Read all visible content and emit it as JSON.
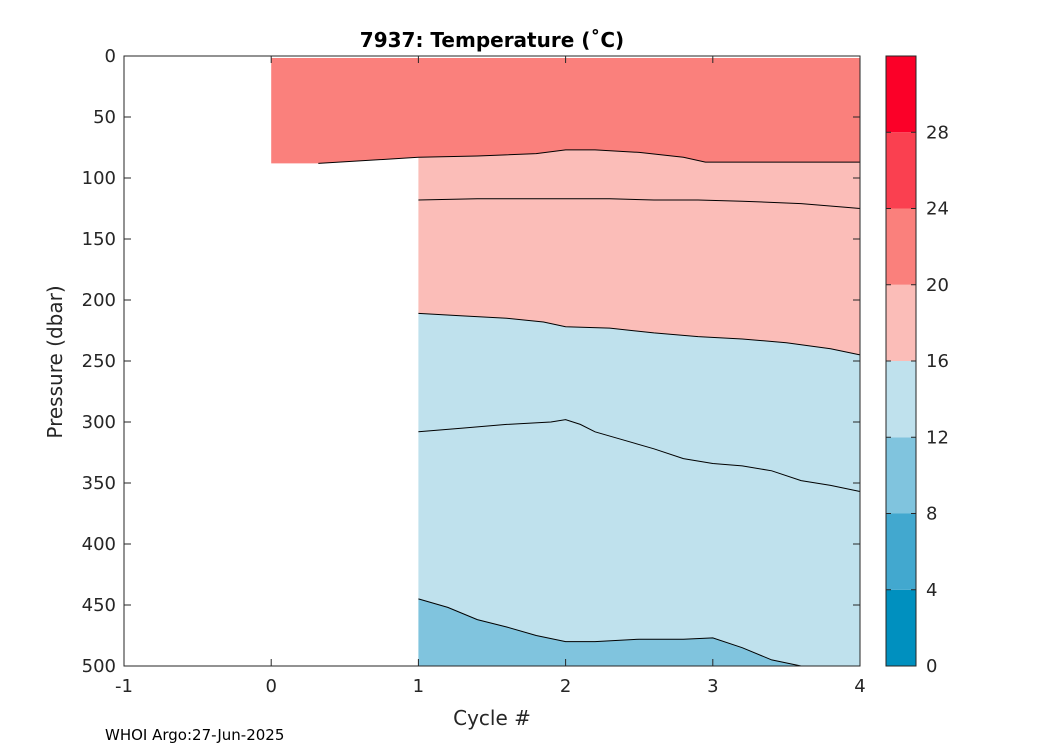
{
  "chart_data": {
    "type": "filled-contour",
    "title": "7937:  Temperature (˚C)",
    "xlabel": "Cycle #",
    "ylabel": "Pressure (dbar)",
    "xlim": [
      -1,
      4
    ],
    "ylim": [
      500,
      0
    ],
    "y_reversed": true,
    "x_ticks": [
      -1,
      0,
      1,
      2,
      3,
      4
    ],
    "x_tick_labels": [
      "-1",
      "0",
      "1",
      "2",
      "3",
      "4"
    ],
    "y_ticks": [
      0,
      50,
      100,
      150,
      200,
      250,
      300,
      350,
      400,
      450,
      500
    ],
    "y_tick_labels": [
      "0",
      "50",
      "100",
      "150",
      "200",
      "250",
      "300",
      "350",
      "400",
      "450",
      "500"
    ],
    "colorbar": {
      "levels": [
        0,
        4,
        8,
        12,
        16,
        20,
        24,
        28,
        32
      ],
      "tick_values": [
        0,
        4,
        8,
        12,
        16,
        20,
        24,
        28
      ],
      "tick_labels": [
        "0",
        "4",
        "8",
        "12",
        "16",
        "20",
        "24",
        "28"
      ],
      "colors": [
        "#0090bf",
        "#42a8cf",
        "#80c4de",
        "#bfe1ed",
        "#fbbdb8",
        "#fa807c",
        "#fa4050",
        "#fb0028"
      ]
    },
    "data_bounds": {
      "surface_layer": {
        "x": [
          0,
          4
        ],
        "p_bottom_at_x0": 88
      },
      "deep_profiles": {
        "x": [
          1,
          4
        ]
      }
    },
    "contours": [
      {
        "level": 20,
        "x": [
          0.32,
          0.6,
          1.0,
          1.4,
          1.8,
          2.0,
          2.2,
          2.5,
          2.8,
          2.95,
          3.2,
          3.6,
          4.0
        ],
        "p": [
          88,
          86,
          83,
          82,
          80,
          77,
          77,
          79,
          83,
          87,
          87,
          87,
          87
        ]
      },
      {
        "level": 18,
        "x": [
          1.0,
          1.4,
          1.8,
          2.0,
          2.3,
          2.6,
          2.9,
          3.2,
          3.6,
          3.9,
          4.0
        ],
        "p": [
          118,
          117,
          117,
          117,
          117,
          118,
          118,
          119,
          121,
          124,
          125
        ]
      },
      {
        "level": 16,
        "x": [
          1.0,
          1.3,
          1.6,
          1.85,
          2.0,
          2.3,
          2.6,
          2.9,
          3.2,
          3.5,
          3.8,
          4.0
        ],
        "p": [
          211,
          213,
          215,
          218,
          222,
          223,
          227,
          230,
          232,
          235,
          240,
          245
        ]
      },
      {
        "level": 14,
        "x": [
          1.0,
          1.3,
          1.6,
          1.9,
          2.0,
          2.1,
          2.2,
          2.4,
          2.6,
          2.8,
          3.0,
          3.2,
          3.4,
          3.6,
          3.8,
          4.0
        ],
        "p": [
          308,
          305,
          302,
          300,
          298,
          302,
          308,
          315,
          322,
          330,
          334,
          336,
          340,
          348,
          352,
          357
        ]
      },
      {
        "level": 12,
        "x": [
          1.0,
          1.2,
          1.4,
          1.6,
          1.8,
          2.0,
          2.2,
          2.5,
          2.8,
          3.0,
          3.2,
          3.4,
          3.6
        ],
        "p": [
          445,
          452,
          462,
          468,
          475,
          480,
          480,
          478,
          478,
          477,
          485,
          495,
          500
        ]
      }
    ]
  },
  "footer": "WHOI Argo:27-Jun-2025"
}
